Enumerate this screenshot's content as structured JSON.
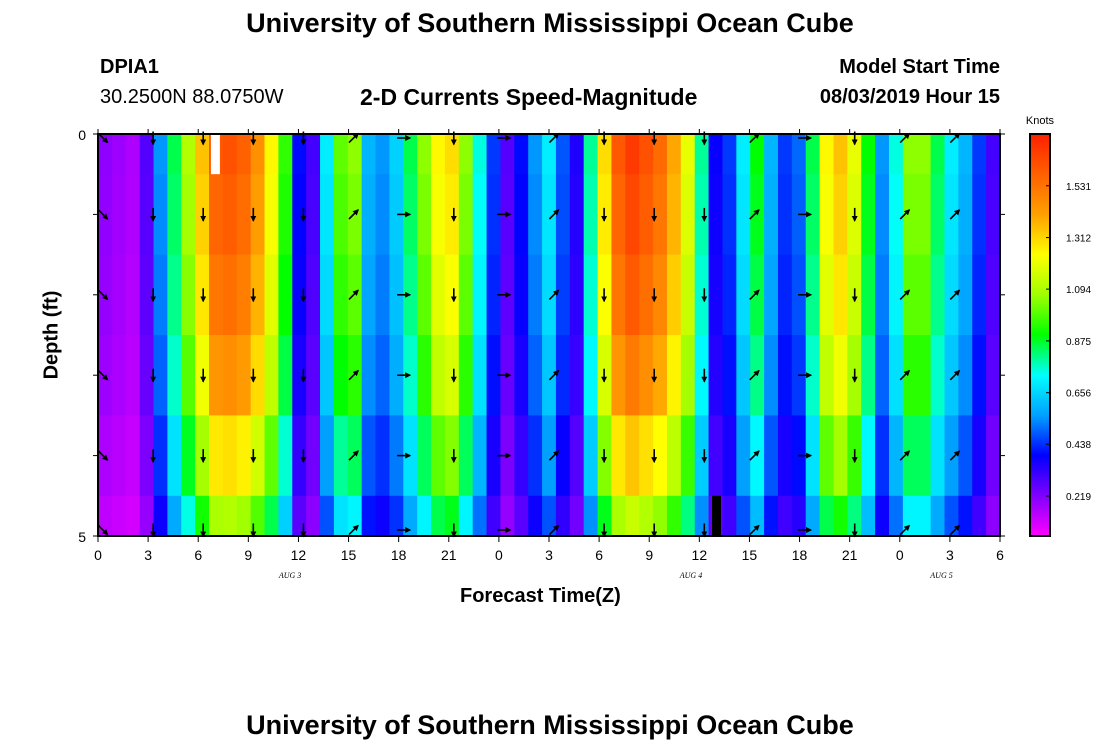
{
  "header": {
    "title": "University of Southern Mississippi Ocean Cube",
    "footer_title": "University of Southern Mississippi Ocean Cube",
    "station_id": "DPIA1",
    "station_coords": "30.2500N 88.0750W",
    "chart_title": "2-D Currents Speed-Magnitude",
    "model_start_label": "Model Start Time",
    "model_start_value": "08/03/2019 Hour 15"
  },
  "colors": {
    "scale": [
      "#ff00ff",
      "#8000ff",
      "#0000ff",
      "#00a0ff",
      "#00ffff",
      "#00ff00",
      "#a0ff00",
      "#ffff00",
      "#ffa000",
      "#ff6000",
      "#ff2000"
    ],
    "arrow": "#000000",
    "frame": "#000000"
  },
  "chart_data": {
    "type": "heatmap",
    "title": "2-D Currents Speed-Magnitude",
    "xlabel": "Forecast Time(Z)",
    "ylabel": "Depth (ft)",
    "x_tick_labels": [
      "0",
      "3",
      "6",
      "9",
      "12",
      "15",
      "18",
      "21",
      "0",
      "3",
      "6",
      "9",
      "12",
      "15",
      "18",
      "21",
      "0",
      "3",
      "6"
    ],
    "date_labels": [
      {
        "label": "AUG 3",
        "hour": 11.5
      },
      {
        "label": "AUG 4",
        "hour": 35.5
      },
      {
        "label": "AUG 5",
        "hour": 50.5
      }
    ],
    "x_range_hours": [
      0,
      54
    ],
    "y_tick_labels": [
      "0",
      "5"
    ],
    "y_range_ft": [
      0,
      5
    ],
    "depth_levels_ft": [
      0,
      1,
      2,
      3,
      4,
      5
    ],
    "colorbar": {
      "label": "Knots",
      "tick_labels": [
        "1.531",
        "1.312",
        "1.094",
        "0.875",
        "0.656",
        "0.438",
        "0.219"
      ],
      "min": 0.05,
      "max": 1.75
    },
    "surface_speed_knots": [
      0.2,
      0.18,
      0.16,
      0.28,
      0.55,
      0.85,
      1.1,
      1.35,
      1.6,
      1.62,
      1.58,
      1.45,
      1.25,
      0.95,
      0.4,
      0.3,
      0.7,
      1.0,
      1.05,
      0.6,
      0.55,
      0.65,
      0.85,
      1.05,
      1.25,
      1.3,
      1.05,
      0.75,
      0.45,
      0.28,
      0.4,
      0.55,
      0.7,
      0.48,
      0.35,
      0.8,
      1.3,
      1.6,
      1.68,
      1.62,
      1.55,
      1.4,
      1.2,
      0.8,
      0.38,
      0.45,
      0.7,
      0.9,
      0.6,
      0.45,
      0.5,
      0.85,
      1.25,
      1.35,
      1.2,
      0.9,
      0.55,
      0.75,
      1.05,
      1.05,
      0.85,
      0.7,
      0.6,
      0.45,
      0.3
    ],
    "depth_factors": [
      1.0,
      0.98,
      0.95,
      0.9,
      0.8,
      0.68
    ],
    "arrow_hours": [
      0,
      3,
      6,
      9,
      12,
      15,
      18,
      21,
      24,
      27,
      30,
      33,
      36,
      39,
      42,
      45,
      48,
      51
    ],
    "arrow_depths_ft": [
      0,
      1,
      2,
      3,
      4,
      5
    ],
    "arrow_directions_deg": [
      135,
      180,
      180,
      180,
      180,
      45,
      90,
      180,
      90,
      45,
      180,
      180,
      180,
      45,
      90,
      180,
      45,
      45
    ],
    "missing_cells": [
      {
        "hour": 7,
        "depth_from": 0,
        "depth_to": 0.5,
        "color": "#ffffff"
      },
      {
        "hour": 37,
        "depth_from": 4.5,
        "depth_to": 5,
        "color": "#000000"
      }
    ]
  }
}
